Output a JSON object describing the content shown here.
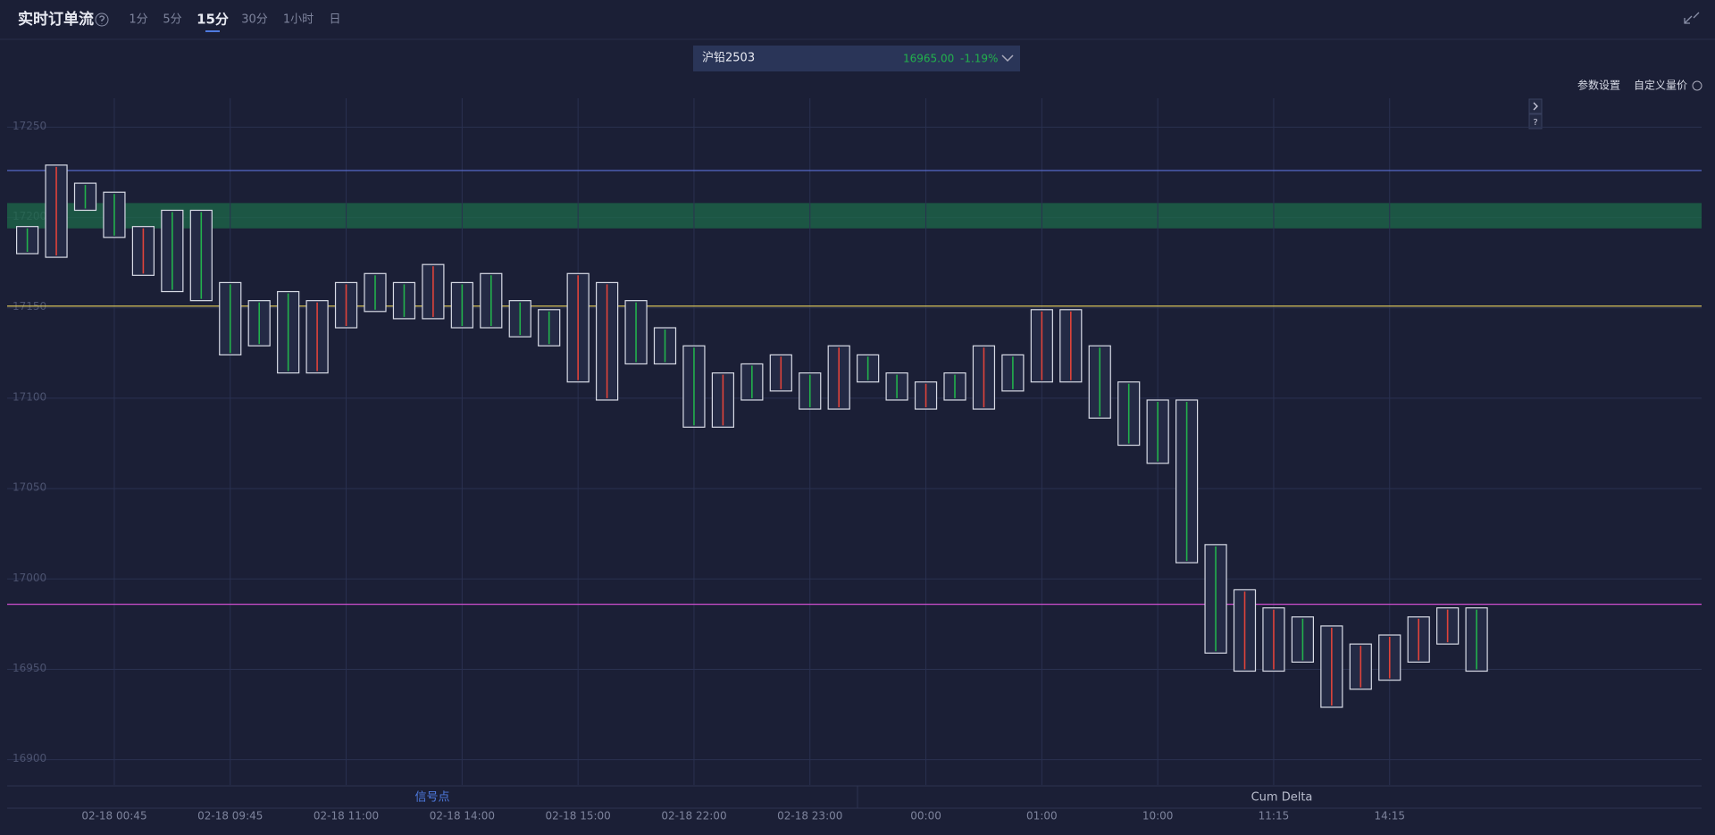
{
  "header": {
    "title": "实时订单流",
    "tabs": [
      "1分",
      "5分",
      "15分",
      "30分",
      "1小时",
      "日"
    ],
    "active_tab": 2
  },
  "contract": {
    "name": "沪铅2503",
    "price": "16965.00",
    "change": "-1.19%"
  },
  "actions": [
    "参数设置",
    "自定义量价"
  ],
  "side_buttons": [
    "?"
  ],
  "panels": [
    "信号点",
    "Cum Delta"
  ],
  "chart_data": {
    "type": "range-bar",
    "categories": [
      null,
      null,
      null,
      "02-18 00:45",
      null,
      null,
      null,
      "02-18 09:45",
      null,
      null,
      null,
      "02-18 11:00",
      null,
      null,
      null,
      "02-18 14:00",
      null,
      null,
      null,
      "02-18 15:00",
      null,
      null,
      null,
      "02-18 22:00",
      null,
      null,
      null,
      "02-18 23:00",
      null,
      null,
      null,
      "00:00",
      null,
      null,
      null,
      "01:00",
      null,
      null,
      null,
      "10:00",
      null,
      null,
      null,
      "11:15",
      null,
      null,
      null,
      "14:15",
      null,
      null,
      null
    ],
    "high": [
      17195,
      17229,
      17219,
      17214,
      17195,
      17204,
      17204,
      17164,
      17154,
      17159,
      17154,
      17164,
      17169,
      17164,
      17174,
      17164,
      17169,
      17154,
      17149,
      17169,
      17164,
      17154,
      17139,
      17129,
      17114,
      17119,
      17124,
      17114,
      17129,
      17124,
      17114,
      17109,
      17114,
      17129,
      17124,
      17149,
      17149,
      17129,
      17109,
      17099,
      17099,
      17019,
      16994,
      16984,
      16979,
      16974,
      16964,
      16969,
      16979,
      16984,
      16984
    ],
    "low": [
      17180,
      17178,
      17204,
      17189,
      17168,
      17159,
      17154,
      17124,
      17129,
      17114,
      17114,
      17139,
      17148,
      17144,
      17144,
      17139,
      17139,
      17134,
      17129,
      17109,
      17099,
      17119,
      17119,
      17084,
      17084,
      17099,
      17104,
      17094,
      17094,
      17109,
      17099,
      17094,
      17099,
      17094,
      17104,
      17109,
      17109,
      17089,
      17074,
      17064,
      17009,
      16959,
      16949,
      16949,
      16954,
      16929,
      16939,
      16944,
      16954,
      16964,
      16949
    ],
    "colors": [
      "#22b14c",
      "#e0433a",
      "#22b14c",
      "#22b14c",
      "#e0433a",
      "#22b14c",
      "#22b14c",
      "#22b14c",
      "#22b14c",
      "#22b14c",
      "#e0433a",
      "#e0433a",
      "#22b14c",
      "#22b14c",
      "#e0433a",
      "#22b14c",
      "#22b14c",
      "#22b14c",
      "#22b14c",
      "#e0433a",
      "#e0433a",
      "#22b14c",
      "#22b14c",
      "#22b14c",
      "#e0433a",
      "#22b14c",
      "#e0433a",
      "#22b14c",
      "#e0433a",
      "#22b14c",
      "#22b14c",
      "#e0433a",
      "#22b14c",
      "#e0433a",
      "#22b14c",
      "#e0433a",
      "#e0433a",
      "#22b14c",
      "#22b14c",
      "#22b14c",
      "#22b14c",
      "#22b14c",
      "#e0433a",
      "#e0433a",
      "#22b14c",
      "#e0433a",
      "#e0433a",
      "#e0433a",
      "#e0433a",
      "#e0433a",
      "#22b14c"
    ],
    "box_color": "#d8dbe6",
    "ylim": [
      16886,
      17266
    ],
    "yticks": [
      16900,
      16950,
      17000,
      17050,
      17100,
      17150,
      17200,
      17250
    ],
    "grid": true,
    "reference_lines": [
      {
        "value": 17226,
        "color": "#5b6fd6"
      },
      {
        "value": 17151,
        "color": "#d8c35a"
      },
      {
        "value": 16986,
        "color": "#d04fd0"
      }
    ],
    "zone": {
      "from": 17194,
      "to": 17208,
      "color": "#1d6a4a"
    }
  }
}
